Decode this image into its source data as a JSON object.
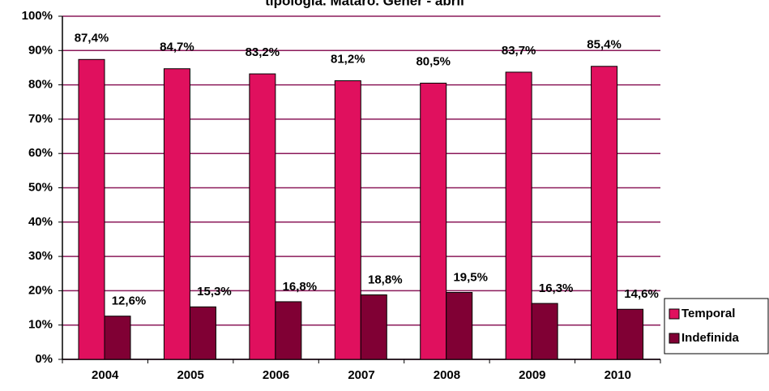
{
  "chart_data": {
    "type": "bar",
    "title": "tipologia. Mataró. Gener - abril",
    "categories": [
      "2004",
      "2005",
      "2006",
      "2007",
      "2008",
      "2009",
      "2010"
    ],
    "series": [
      {
        "name": "Temporal",
        "color": "#e0105e",
        "values": [
          87.4,
          84.7,
          83.2,
          81.2,
          80.5,
          83.7,
          85.4
        ],
        "value_labels": [
          "87,4%",
          "84,7%",
          "83,2%",
          "81,2%",
          "80,5%",
          "83,7%",
          "85,4%"
        ]
      },
      {
        "name": "Indefinida",
        "color": "#800034",
        "values": [
          12.6,
          15.3,
          16.8,
          18.8,
          19.5,
          16.3,
          14.6
        ],
        "value_labels": [
          "12,6%",
          "15,3%",
          "16,8%",
          "18,8%",
          "19,5%",
          "16,3%",
          "14,6%"
        ]
      }
    ],
    "ylim": [
      0,
      100
    ],
    "yticks": [
      {
        "value": 0,
        "label": "0%"
      },
      {
        "value": 10,
        "label": "10%"
      },
      {
        "value": 20,
        "label": "20%"
      },
      {
        "value": 30,
        "label": "30%"
      },
      {
        "value": 40,
        "label": "40%"
      },
      {
        "value": 50,
        "label": "50%"
      },
      {
        "value": 60,
        "label": "60%"
      },
      {
        "value": 70,
        "label": "70%"
      },
      {
        "value": 80,
        "label": "80%"
      },
      {
        "value": 90,
        "label": "90%"
      },
      {
        "value": 100,
        "label": "100%"
      }
    ],
    "grid": true,
    "legend": "right"
  }
}
